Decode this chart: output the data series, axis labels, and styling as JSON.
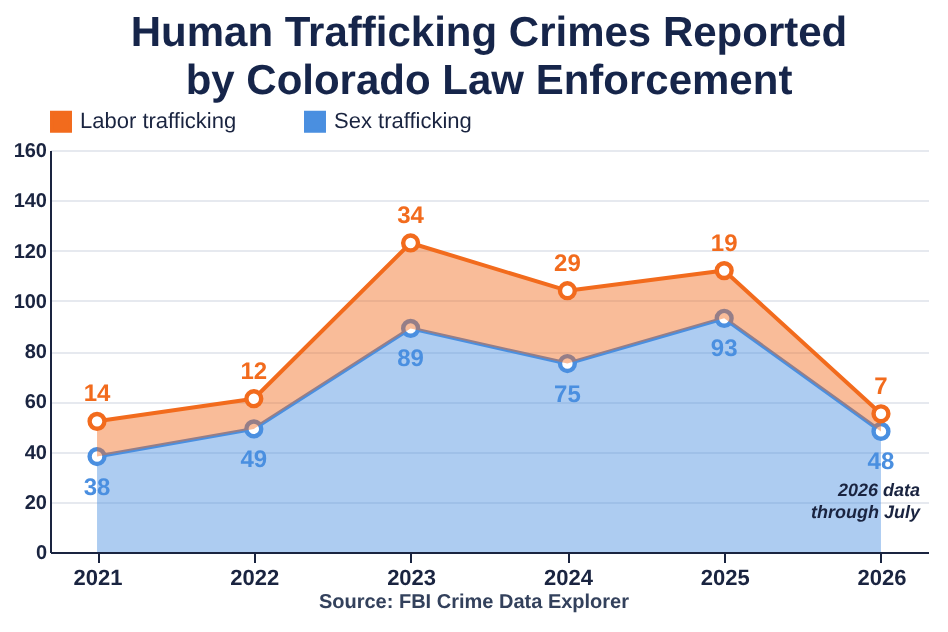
{
  "chart_data": {
    "type": "area",
    "title": "Human Trafficking Crimes Reported by Colorado Law Enforcement",
    "categories": [
      "2021",
      "2022",
      "2023",
      "2024",
      "2025",
      "2026"
    ],
    "stacked": true,
    "series": [
      {
        "name": "Sex trafficking",
        "color": "#4a8fe0",
        "values": [
          38,
          49,
          89,
          75,
          93,
          48
        ]
      },
      {
        "name": "Labor trafficking",
        "color": "#f26b1d",
        "values": [
          14,
          12,
          34,
          29,
          19,
          7
        ]
      }
    ],
    "ylim": [
      0,
      160
    ],
    "yticks": [
      0,
      20,
      40,
      60,
      80,
      100,
      120,
      140,
      160
    ],
    "grid": "y",
    "legend": "top",
    "marker": "circle",
    "data_labels": true,
    "annotations": [
      "2026 data through July",
      "Source: FBI Crime Data Explorer"
    ]
  }
}
